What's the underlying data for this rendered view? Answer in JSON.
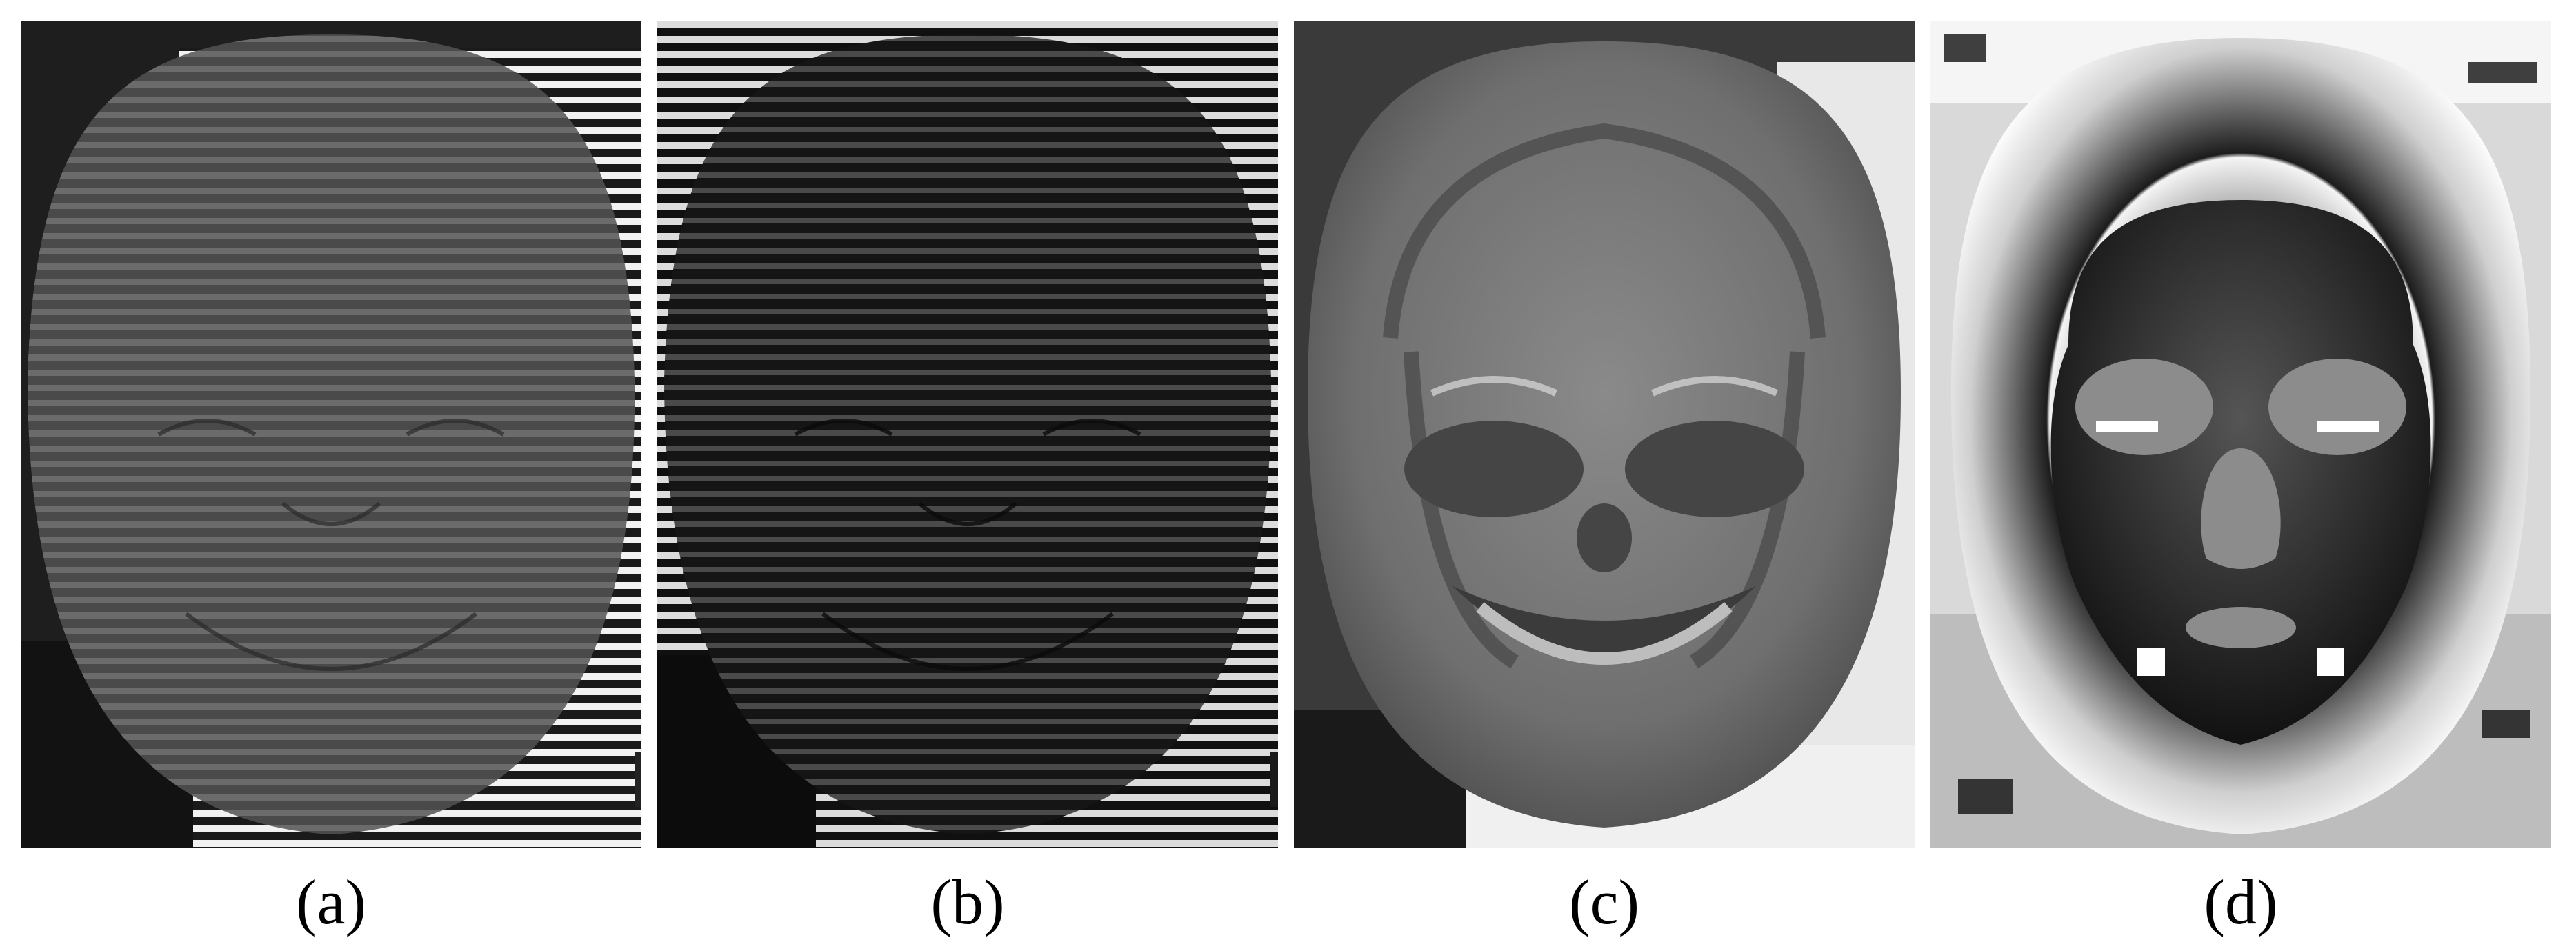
{
  "figure": {
    "panels": [
      {
        "id": "a",
        "label": "(a)",
        "content": "fringe-pattern-mask"
      },
      {
        "id": "b",
        "label": "(b)",
        "content": "fringe-pattern-mask-dark"
      },
      {
        "id": "c",
        "label": "(c)",
        "content": "grayscale-texture-mask"
      },
      {
        "id": "d",
        "label": "(d)",
        "content": "wrapped-phase-map"
      }
    ]
  }
}
